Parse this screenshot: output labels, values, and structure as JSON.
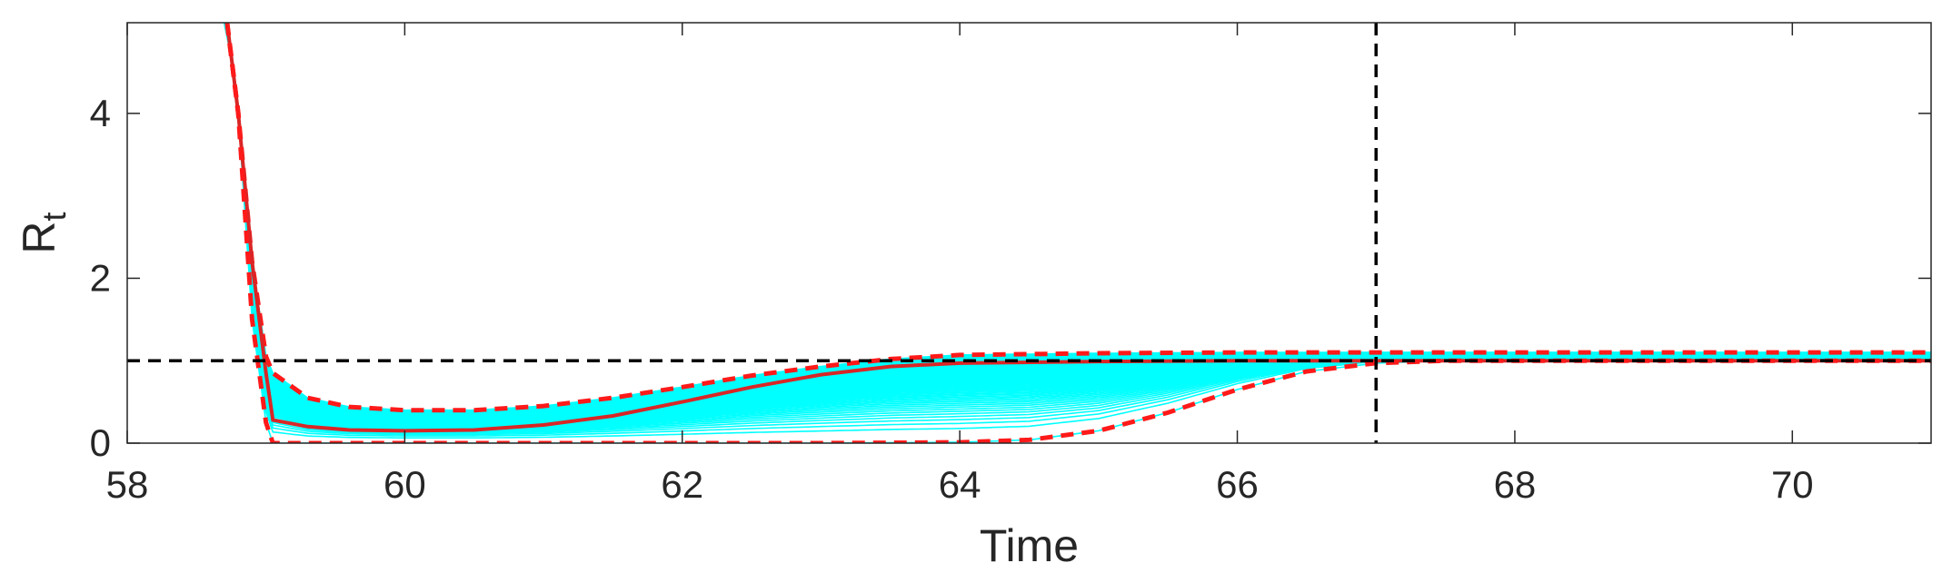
{
  "chart_data": {
    "type": "line",
    "xlabel": "Time",
    "ylabel": "R",
    "ylabel_subscript": "t",
    "xlim": [
      58,
      71
    ],
    "ylim": [
      0,
      5.1
    ],
    "x_ticks": [
      58,
      60,
      62,
      64,
      66,
      68,
      70
    ],
    "y_ticks": [
      0,
      2,
      4
    ],
    "grid": false,
    "legend": "none",
    "reference_lines": [
      {
        "orientation": "horizontal",
        "value": 1,
        "style": "dashed",
        "color": "#000000"
      },
      {
        "orientation": "vertical",
        "value": 67,
        "style": "dashed",
        "color": "#000000"
      }
    ],
    "colors": {
      "ensemble": "#00ffff",
      "mean": "#d92626",
      "bounds": "#ff1a1a",
      "reference": "#000000",
      "axes": "#262626"
    },
    "series": [
      {
        "role": "upper-bound",
        "style": "dashed",
        "points": [
          [
            58.72,
            5.1
          ],
          [
            58.8,
            4.0
          ],
          [
            58.9,
            2.2
          ],
          [
            59.0,
            1.05
          ],
          [
            59.05,
            0.85
          ],
          [
            59.3,
            0.55
          ],
          [
            59.6,
            0.44
          ],
          [
            60,
            0.4
          ],
          [
            60.5,
            0.4
          ],
          [
            61,
            0.45
          ],
          [
            61.5,
            0.55
          ],
          [
            62,
            0.68
          ],
          [
            62.5,
            0.82
          ],
          [
            63,
            0.93
          ],
          [
            63.5,
            1.02
          ],
          [
            64,
            1.07
          ],
          [
            65,
            1.09
          ],
          [
            66,
            1.1
          ],
          [
            67,
            1.1
          ],
          [
            68,
            1.1
          ],
          [
            69,
            1.1
          ],
          [
            70,
            1.1
          ],
          [
            71,
            1.1
          ]
        ]
      },
      {
        "role": "mean",
        "style": "solid",
        "points": [
          [
            58.72,
            5.1
          ],
          [
            58.8,
            4.0
          ],
          [
            58.9,
            2.2
          ],
          [
            59.0,
            0.85
          ],
          [
            59.05,
            0.28
          ],
          [
            59.3,
            0.2
          ],
          [
            59.6,
            0.16
          ],
          [
            60,
            0.15
          ],
          [
            60.5,
            0.16
          ],
          [
            61,
            0.22
          ],
          [
            61.5,
            0.33
          ],
          [
            62,
            0.5
          ],
          [
            62.5,
            0.68
          ],
          [
            63,
            0.83
          ],
          [
            63.5,
            0.93
          ],
          [
            64,
            0.97
          ],
          [
            65,
            0.99
          ],
          [
            66,
            1.0
          ],
          [
            67,
            1.0
          ],
          [
            68,
            1.0
          ],
          [
            69,
            1.0
          ],
          [
            70,
            1.0
          ],
          [
            71,
            1.0
          ]
        ]
      },
      {
        "role": "lower-bound",
        "style": "dashed",
        "points": [
          [
            58.72,
            5.1
          ],
          [
            58.8,
            4.0
          ],
          [
            58.9,
            1.5
          ],
          [
            59.0,
            0.25
          ],
          [
            59.05,
            0.0
          ],
          [
            60,
            0.0
          ],
          [
            61,
            0.0
          ],
          [
            62,
            0.0
          ],
          [
            63,
            0.0
          ],
          [
            64,
            0.01
          ],
          [
            64.5,
            0.04
          ],
          [
            65,
            0.15
          ],
          [
            65.5,
            0.37
          ],
          [
            66,
            0.65
          ],
          [
            66.5,
            0.87
          ],
          [
            67,
            0.97
          ],
          [
            67.5,
            1.0
          ],
          [
            68,
            1.0
          ],
          [
            69,
            1.0
          ],
          [
            70,
            1.0
          ],
          [
            71,
            1.0
          ]
        ]
      }
    ]
  }
}
